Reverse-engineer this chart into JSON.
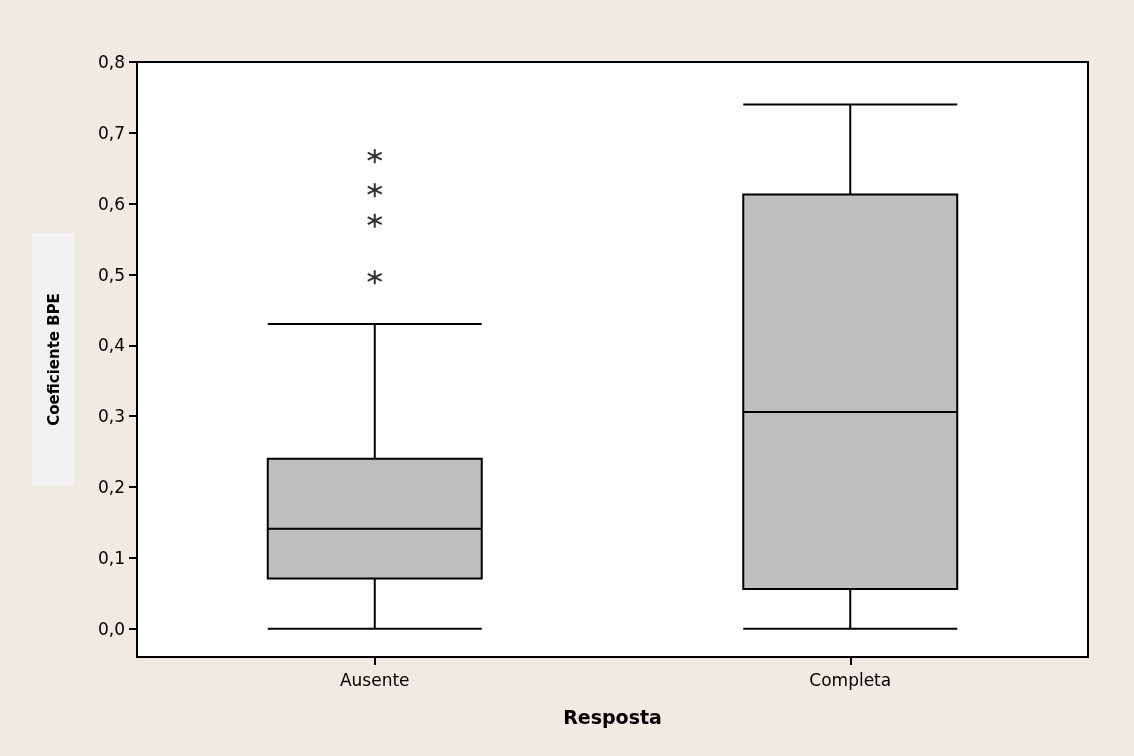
{
  "chart_data": {
    "type": "box",
    "xlabel": "Resposta",
    "ylabel": "Coeficiente BPE",
    "categories": [
      "Ausente",
      "Completa"
    ],
    "boxes": [
      {
        "low": 0,
        "q1": 0.071,
        "median": 0.141,
        "q3": 0.24,
        "high": 0.43,
        "outliers": [
          0.667,
          0.619,
          0.576,
          0.496
        ]
      },
      {
        "low": 0,
        "q1": 0.056,
        "median": 0.306,
        "q3": 0.613,
        "high": 0.74
      }
    ],
    "color": "#bfbfbf",
    "ylim": [
      -0.04,
      0.8
    ],
    "yticks": [
      {
        "value": 0,
        "label": "0,0"
      },
      {
        "value": 0.1,
        "label": "0,1"
      },
      {
        "value": 0.2,
        "label": "0,2"
      },
      {
        "value": 0.3,
        "label": "0,3"
      },
      {
        "value": 0.4,
        "label": "0,4"
      },
      {
        "value": 0.5,
        "label": "0,5"
      },
      {
        "value": 0.6,
        "label": "0,6"
      },
      {
        "value": 0.7,
        "label": "0,7"
      },
      {
        "value": 0.8,
        "label": "0,8"
      }
    ],
    "grid": false
  }
}
